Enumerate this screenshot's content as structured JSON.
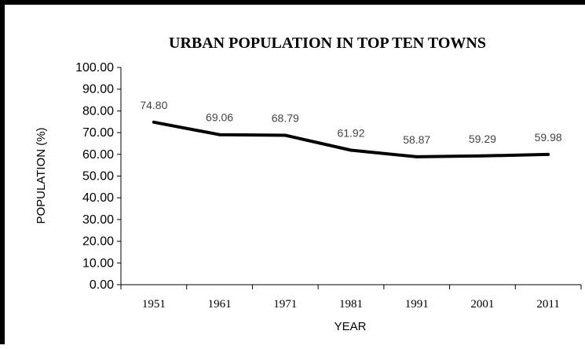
{
  "chart_data": {
    "type": "line",
    "title": "URBAN POPULATION IN TOP TEN TOWNS",
    "xlabel": "YEAR",
    "ylabel": "POPULATION (%)",
    "ylim": [
      0,
      100
    ],
    "y_ticks": [
      "0.00",
      "10.00",
      "20.00",
      "30.00",
      "40.00",
      "50.00",
      "60.00",
      "70.00",
      "80.00",
      "90.00",
      "100.00"
    ],
    "categories": [
      "1951",
      "1961",
      "1971",
      "1981",
      "1991",
      "2001",
      "2011"
    ],
    "values": [
      74.8,
      69.06,
      68.79,
      61.92,
      58.87,
      59.29,
      59.98
    ],
    "data_labels": [
      "74.80",
      "69.06",
      "68.79",
      "61.92",
      "58.87",
      "59.29",
      "59.98"
    ],
    "line_color": "#000000",
    "grid": false,
    "legend": "none"
  }
}
